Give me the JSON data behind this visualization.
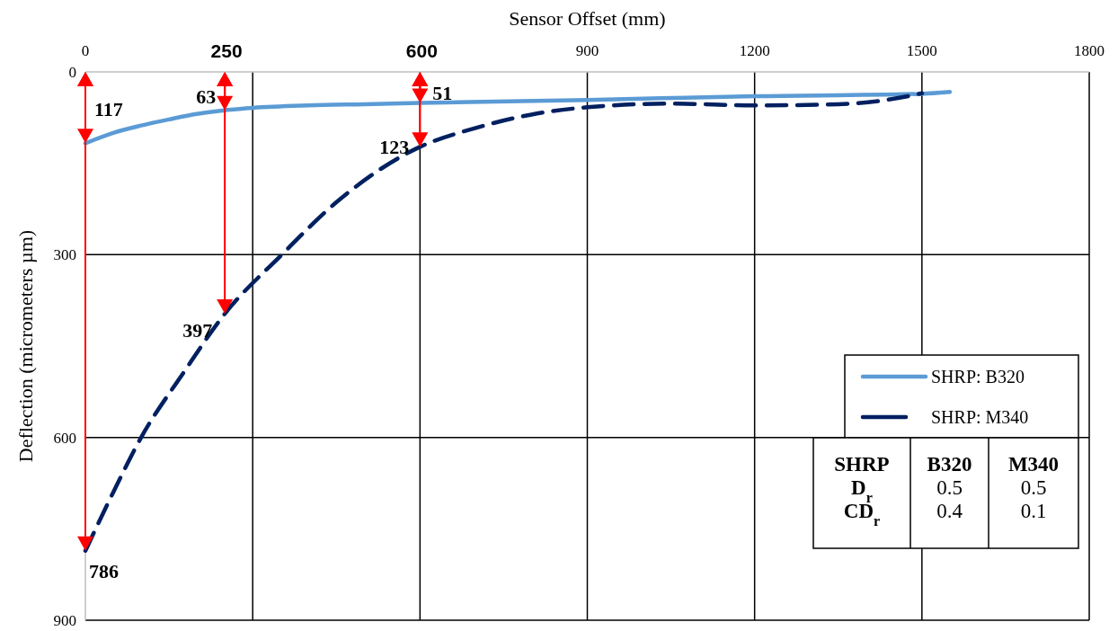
{
  "chart_data": {
    "type": "line",
    "xlabel": "Sensor Offset (mm)",
    "ylabel": "Deflection (micrometers µm)",
    "xlim": [
      0,
      1800
    ],
    "xticks": [
      0,
      {
        "value": 300,
        "label": null
      },
      {
        "value": 600,
        "label": null
      },
      900,
      1200,
      1500,
      1800
    ],
    "ylim": [
      900,
      0
    ],
    "yticks": [
      0,
      300,
      600,
      900
    ],
    "grid": true,
    "legend": "right",
    "series": [
      {
        "name": "SHRP: B320",
        "color": "#5b9bd5",
        "line_style": "solid",
        "x": [
          0,
          50,
          100,
          150,
          200,
          250,
          300,
          400,
          500,
          600,
          900,
          1200,
          1500,
          1550
        ],
        "values": [
          117,
          100,
          88,
          78,
          69,
          63,
          59,
          55,
          53,
          51,
          46,
          40,
          36,
          33
        ]
      },
      {
        "name": "SHRP: M340",
        "color": "#002060",
        "line_style": "dashed",
        "x": [
          0,
          50,
          100,
          175,
          250,
          350,
          450,
          600,
          700,
          800,
          900,
          1050,
          1200,
          1350,
          1450,
          1500
        ],
        "values": [
          786,
          690,
          600,
          495,
          397,
          302,
          214,
          123,
          92,
          70,
          58,
          52,
          55,
          53,
          44,
          35
        ]
      }
    ],
    "annotations": [
      "250",
      "600",
      {
        "text": "117",
        "x": 0,
        "y": 117
      },
      {
        "text": "786",
        "x": 0,
        "y": 786
      },
      {
        "text": "63",
        "x": 250,
        "y": 63
      },
      {
        "text": "397",
        "x": 250,
        "y": 397
      },
      {
        "text": "51",
        "x": 600,
        "y": 51
      },
      {
        "text": "123",
        "x": 600,
        "y": 123
      },
      "SHRP",
      "B320",
      "M340",
      "D$_{r}$",
      "0.5",
      "0.5",
      "CD$_{r}$",
      "0.4",
      "0.1"
    ]
  }
}
